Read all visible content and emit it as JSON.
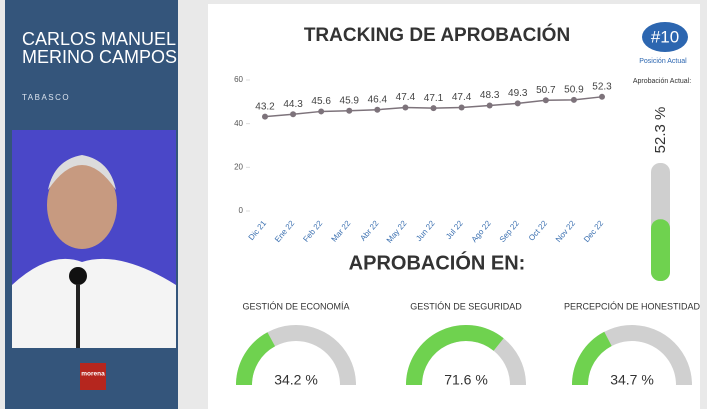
{
  "sidebar": {
    "name": [
      "CARLOS MANUEL",
      "MERINO CAMPOS"
    ],
    "state": "TABASCO",
    "party": "morena"
  },
  "rank": {
    "label": "#10",
    "caption": "Posición Actual"
  },
  "chart_data": [
    {
      "type": "line",
      "title": "TRACKING DE APROBACIÓN",
      "categories": [
        "Dic 21",
        "Ene 22",
        "Feb 22",
        "Mar 22",
        "Abr 22",
        "May 22",
        "Jun 22",
        "Jul 22",
        "Ago 22",
        "Sep 22",
        "Oct 22",
        "Nov 22",
        "Dec 22"
      ],
      "values": [
        43.2,
        44.3,
        45.6,
        45.9,
        46.4,
        47.4,
        47.1,
        47.4,
        48.3,
        49.3,
        50.7,
        50.9,
        52.3
      ],
      "ylim": [
        0,
        60
      ],
      "yticks": [
        0,
        20,
        40,
        60
      ],
      "color": "#7d737b"
    },
    {
      "type": "bar",
      "title": "Aprobación Actual:",
      "values": [
        52.3
      ],
      "value_labels": [
        "52.3 %"
      ],
      "ylim": [
        0,
        100
      ],
      "color": "#6fd24f"
    },
    {
      "type": "gauge",
      "title": "APROBACIÓN EN:",
      "categories": [
        "GESTIÓN DE ECONOMÍA",
        "GESTIÓN DE SEGURIDAD",
        "PERCEPCIÓN DE HONESTIDAD"
      ],
      "values": [
        34.2,
        71.6,
        34.7
      ],
      "value_labels": [
        "34.2 %",
        "71.6 %",
        "34.7 %"
      ],
      "ylim": [
        0,
        100
      ],
      "color": "#6fd24f"
    }
  ]
}
